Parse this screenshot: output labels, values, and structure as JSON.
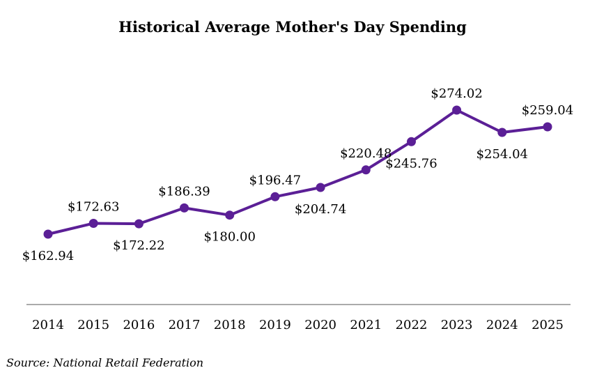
{
  "chart_data": {
    "type": "line",
    "title": "Historical Average Mother's Day Spending",
    "categories": [
      "2014",
      "2015",
      "2016",
      "2017",
      "2018",
      "2019",
      "2020",
      "2021",
      "2022",
      "2023",
      "2024",
      "2025"
    ],
    "values": [
      162.94,
      172.63,
      172.22,
      186.39,
      180.0,
      196.47,
      204.74,
      220.48,
      245.76,
      274.02,
      254.04,
      259.04
    ],
    "data_labels": [
      "$162.94",
      "$172.63",
      "$172.22",
      "$186.39",
      "$180.00",
      "$196.47",
      "$204.74",
      "$220.48",
      "$245.76",
      "$274.02",
      "$254.04",
      "$259.04"
    ],
    "label_positions": [
      "below",
      "above",
      "below",
      "above",
      "below",
      "above",
      "below",
      "above",
      "below",
      "above",
      "below",
      "above"
    ],
    "xlabel": "",
    "ylabel": "",
    "grid": false,
    "legend": "none",
    "line_color": "#5b1f96",
    "source": "Source: National Retail Federation"
  }
}
